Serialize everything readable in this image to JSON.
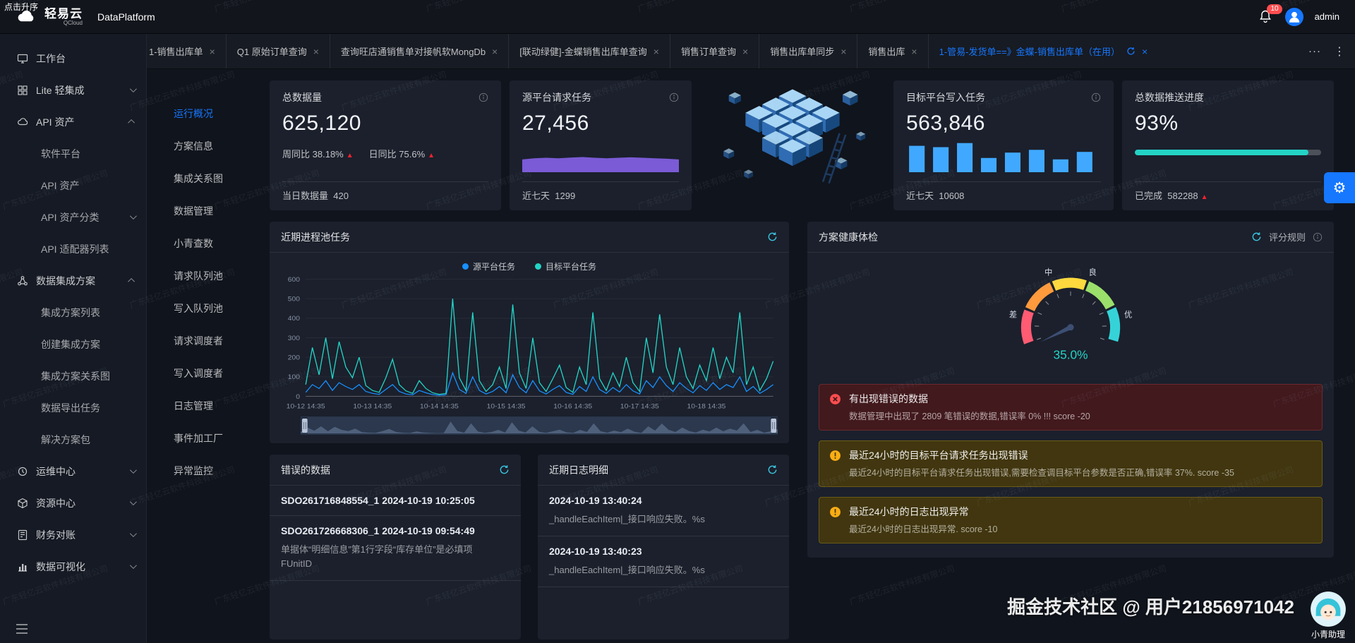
{
  "colors": {
    "accent_blue": "#1677ff",
    "teal": "#23d3c5",
    "purple": "#7b5bd6",
    "bar_blue": "#40a9ff",
    "danger": "#f5222d",
    "error_icon": "#ff4d4f",
    "warning_icon": "#faad14"
  },
  "topbar": {
    "tooltip": "点击升序",
    "logo_title": "轻易云",
    "logo_subtitle": "QCloud",
    "product_name": "DataPlatform",
    "notification_count": "10",
    "username": "admin"
  },
  "tabbar": {
    "tabs": [
      {
        "label": "1-销售出库单"
      },
      {
        "label": "Q1 原始订单查询"
      },
      {
        "label": "查询旺店通销售单对接帆软MongDb"
      },
      {
        "label": "[联动绿健]-金蝶销售出库单查询"
      },
      {
        "label": "销售订单查询"
      },
      {
        "label": "销售出库单同步"
      },
      {
        "label": "销售出库"
      }
    ],
    "active_tab": {
      "label": "1-管易-发货单==》金蝶-销售出库单（在用）"
    },
    "more_horizontal": "···",
    "more_vertical": "⋮"
  },
  "sidebar": {
    "items": [
      {
        "label": "工作台",
        "icon": "workbench-icon",
        "level": 0
      },
      {
        "label": "Lite 轻集成",
        "icon": "lite-integration-icon",
        "level": 0,
        "chevron": "down"
      },
      {
        "label": "API 资产",
        "icon": "api-asset-icon",
        "level": 0,
        "chevron": "up"
      },
      {
        "label": "软件平台",
        "level": 1
      },
      {
        "label": "API 资产",
        "level": 1
      },
      {
        "label": "API 资产分类",
        "level": 1,
        "chevron": "down"
      },
      {
        "label": "API 适配器列表",
        "level": 1
      },
      {
        "label": "数据集成方案",
        "icon": "data-integration-icon",
        "level": 0,
        "chevron": "up"
      },
      {
        "label": "集成方案列表",
        "level": 1
      },
      {
        "label": "创建集成方案",
        "level": 1
      },
      {
        "label": "集成方案关系图",
        "level": 1
      },
      {
        "label": "数据导出任务",
        "level": 1
      },
      {
        "label": "解决方案包",
        "level": 1
      },
      {
        "label": "运维中心",
        "icon": "ops-center-icon",
        "level": 0,
        "chevron": "down"
      },
      {
        "label": "资源中心",
        "icon": "resource-center-icon",
        "level": 0,
        "chevron": "down"
      },
      {
        "label": "财务对账",
        "icon": "finance-icon",
        "level": 0,
        "chevron": "down"
      },
      {
        "label": "数据可视化",
        "icon": "data-viz-icon",
        "level": 0,
        "chevron": "down"
      }
    ]
  },
  "subnav": {
    "items": [
      {
        "label": "运行概况",
        "active": true
      },
      {
        "label": "方案信息"
      },
      {
        "label": "集成关系图"
      },
      {
        "label": "数据管理"
      },
      {
        "label": "小青查数"
      },
      {
        "label": "请求队列池"
      },
      {
        "label": "写入队列池"
      },
      {
        "label": "请求调度者"
      },
      {
        "label": "写入调度者"
      },
      {
        "label": "日志管理"
      },
      {
        "label": "事件加工厂"
      },
      {
        "label": "异常监控"
      }
    ]
  },
  "stats": {
    "total_data": {
      "title": "总数据量",
      "value": "625,120",
      "week_label": "周同比",
      "week_value": "38.18%",
      "day_label": "日同比",
      "day_value": "75.6%",
      "footer_label": "当日数据量",
      "footer_value": "420"
    },
    "source_requests": {
      "title": "源平台请求任务",
      "value": "27,456",
      "footer_label": "近七天",
      "footer_value": "1299"
    },
    "target_writes": {
      "title": "目标平台写入任务",
      "value": "563,846",
      "footer_label": "近七天",
      "footer_value": "10608"
    },
    "push_progress": {
      "title": "总数据推送进度",
      "value": "93%",
      "footer_label": "已完成",
      "footer_value": "582288"
    }
  },
  "process_chart": {
    "title": "近期进程池任务"
  },
  "health": {
    "title": "方案健康体检",
    "score_rule_label": "评分规则",
    "gauge_value": "35.0%",
    "alerts": [
      {
        "type": "error",
        "title": "有出现错误的数据",
        "desc": "数据管理中出现了 2809 笔错误的数据,错误率 0% !!! score -20"
      },
      {
        "type": "warning",
        "title": "最近24小时的目标平台请求任务出现错误",
        "desc": "最近24小时的目标平台请求任务出现错误,需要检查调目标平台参数是否正确,错误率 37%. score -35"
      },
      {
        "type": "warning",
        "title": "最近24小时的日志出现异常",
        "desc": "最近24小时的日志出现异常. score -10"
      }
    ]
  },
  "error_data": {
    "title": "错误的数据",
    "items": [
      {
        "id": "SDO261716848554_1 2024-10-19 10:25:05",
        "desc": ""
      },
      {
        "id": "SDO261726668306_1 2024-10-19 09:54:49",
        "desc": "单据体“明细信息”第1行字段“库存单位”是必填项 FUnitID"
      }
    ]
  },
  "recent_logs": {
    "title": "近期日志明细",
    "items": [
      {
        "time": "2024-10-19 13:40:24",
        "message": "_handleEachItem|_接口响应失败。%s"
      },
      {
        "time": "2024-10-19 13:40:23",
        "message": "_handleEachItem|_接口响应失败。%s"
      }
    ]
  },
  "overlays": {
    "watermark": "广东轻亿云软件科技有限公司",
    "community_watermark": "掘金技术社区 @ 用户21856971042",
    "assistant_label": "小青助理"
  },
  "chart_data": [
    {
      "type": "line",
      "title": "近期进程池任务",
      "legend": [
        "源平台任务",
        "目标平台任务"
      ],
      "x_ticks": [
        "10-12 14:35",
        "10-13 14:35",
        "10-14 14:35",
        "10-15 14:35",
        "10-16 14:35",
        "10-17 14:35",
        "10-18 14:35"
      ],
      "ylim": [
        0,
        600
      ],
      "y_ticks": [
        0,
        100,
        200,
        300,
        400,
        500,
        600
      ],
      "series": [
        {
          "name": "源平台任务",
          "color": "#1890ff",
          "values": [
            20,
            60,
            40,
            80,
            30,
            70,
            50,
            35,
            60,
            25,
            15,
            10,
            35,
            60,
            25,
            12,
            8,
            30,
            18,
            9,
            5,
            8,
            120,
            35,
            15,
            100,
            30,
            12,
            25,
            50,
            18,
            110,
            45,
            18,
            80,
            28,
            12,
            35,
            55,
            20,
            10,
            50,
            25,
            100,
            35,
            15,
            45,
            22,
            60,
            28,
            12,
            80,
            45,
            100,
            55,
            25,
            70,
            40,
            18,
            55,
            30,
            70,
            35,
            60,
            45,
            100,
            25,
            50,
            15,
            35,
            60
          ]
        },
        {
          "name": "目标平台任务",
          "color": "#23d3c5",
          "values": [
            60,
            250,
            110,
            300,
            90,
            280,
            150,
            95,
            200,
            55,
            30,
            20,
            95,
            190,
            60,
            28,
            15,
            80,
            40,
            18,
            10,
            15,
            500,
            95,
            30,
            430,
            80,
            25,
            60,
            150,
            40,
            470,
            120,
            40,
            300,
            70,
            25,
            90,
            160,
            45,
            20,
            150,
            60,
            430,
            90,
            30,
            120,
            50,
            200,
            70,
            25,
            300,
            120,
            420,
            150,
            60,
            250,
            100,
            40,
            160,
            80,
            250,
            90,
            200,
            120,
            430,
            60,
            150,
            30,
            90,
            180
          ]
        }
      ]
    },
    {
      "type": "area",
      "title": "源平台请求任务趋势",
      "color": "#7b5bd6",
      "values": [
        55,
        60,
        62,
        60,
        63,
        65,
        62,
        60,
        62,
        64,
        62,
        60,
        58,
        55
      ]
    },
    {
      "type": "bar",
      "title": "目标平台写入任务趋势",
      "color": "#40a9ff",
      "values": [
        78,
        74,
        86,
        42,
        58,
        66,
        38,
        60
      ]
    },
    {
      "type": "gauge",
      "title": "方案健康体检",
      "value": 35.0,
      "unit": "%",
      "labels": [
        "差",
        "中",
        "良",
        "优"
      ],
      "segments": [
        {
          "color": "#ff5b73"
        },
        {
          "color": "#ff9a3d"
        },
        {
          "color": "#ffd93d"
        },
        {
          "color": "#9be06b"
        },
        {
          "color": "#35d3d8"
        }
      ]
    },
    {
      "type": "progress",
      "title": "总数据推送进度",
      "value": 93,
      "color": "#23d3c5"
    }
  ]
}
